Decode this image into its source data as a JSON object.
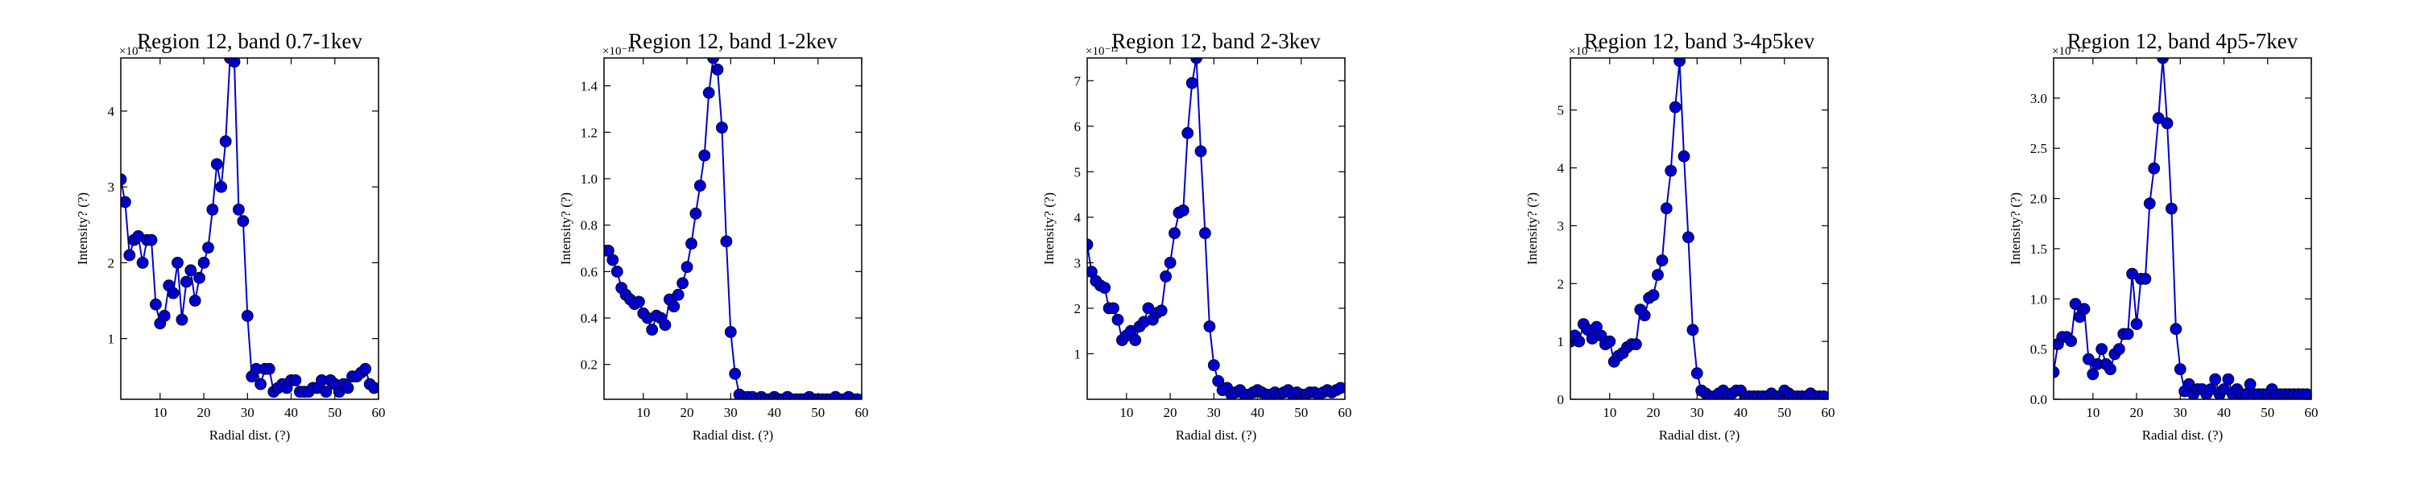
{
  "figure": {
    "background": "#ffffff",
    "line_color": "#0000cc",
    "marker_color": "#0000cc"
  },
  "chart_data": [
    {
      "type": "line",
      "title": "Region 12, band 0.7-1kev",
      "xlabel": "Radial dist. (?)",
      "ylabel": "Intensity? (?)",
      "offset_text": "×10⁻¹²",
      "xlim": [
        1,
        60
      ],
      "ylim": [
        0.2,
        4.7
      ],
      "xticks": [
        10,
        20,
        30,
        40,
        50,
        60
      ],
      "yticks": [
        1,
        2,
        3,
        4
      ],
      "x": [
        1,
        2,
        3,
        4,
        5,
        6,
        7,
        8,
        9,
        10,
        11,
        12,
        13,
        14,
        15,
        16,
        17,
        18,
        19,
        20,
        21,
        22,
        23,
        24,
        25,
        26,
        27,
        28,
        29,
        30,
        31,
        32,
        33,
        34,
        35,
        36,
        37,
        38,
        39,
        40,
        41,
        42,
        43,
        44,
        45,
        46,
        47,
        48,
        49,
        50,
        51,
        52,
        53,
        54,
        55,
        56,
        57,
        58,
        59
      ],
      "y": [
        3.1,
        2.8,
        2.1,
        2.3,
        2.35,
        2.0,
        2.3,
        2.3,
        1.45,
        1.2,
        1.3,
        1.7,
        1.6,
        2.0,
        1.25,
        1.75,
        1.9,
        1.5,
        1.8,
        2.0,
        2.2,
        2.7,
        3.3,
        3.0,
        3.6,
        4.7,
        4.65,
        2.7,
        2.55,
        1.3,
        0.5,
        0.6,
        0.4,
        0.6,
        0.6,
        0.3,
        0.35,
        0.4,
        0.35,
        0.45,
        0.45,
        0.3,
        0.3,
        0.3,
        0.35,
        0.35,
        0.45,
        0.3,
        0.45,
        0.4,
        0.3,
        0.4,
        0.35,
        0.5,
        0.5,
        0.55,
        0.6,
        0.4,
        0.35
      ]
    },
    {
      "type": "line",
      "title": "Region 12, band 1-2kev",
      "xlabel": "Radial dist. (?)",
      "ylabel": "Intensity? (?)",
      "offset_text": "×10⁻¹¹",
      "xlim": [
        1,
        60
      ],
      "ylim": [
        0.05,
        1.52
      ],
      "xticks": [
        10,
        20,
        30,
        40,
        50,
        60
      ],
      "yticks": [
        0.2,
        0.4,
        0.6,
        0.8,
        1.0,
        1.2,
        1.4
      ],
      "x": [
        1,
        2,
        3,
        4,
        5,
        6,
        7,
        8,
        9,
        10,
        11,
        12,
        13,
        14,
        15,
        16,
        17,
        18,
        19,
        20,
        21,
        22,
        23,
        24,
        25,
        26,
        27,
        28,
        29,
        30,
        31,
        32,
        33,
        34,
        35,
        36,
        37,
        38,
        39,
        40,
        41,
        42,
        43,
        44,
        45,
        46,
        47,
        48,
        49,
        50,
        51,
        52,
        53,
        54,
        55,
        56,
        57,
        58,
        59
      ],
      "y": [
        0.69,
        0.69,
        0.65,
        0.6,
        0.53,
        0.5,
        0.48,
        0.46,
        0.47,
        0.42,
        0.4,
        0.35,
        0.41,
        0.4,
        0.37,
        0.48,
        0.45,
        0.5,
        0.55,
        0.62,
        0.72,
        0.85,
        0.97,
        1.1,
        1.37,
        1.52,
        1.47,
        1.22,
        0.73,
        0.34,
        0.16,
        0.07,
        0.06,
        0.06,
        0.06,
        0.05,
        0.06,
        0.05,
        0.05,
        0.06,
        0.05,
        0.05,
        0.06,
        0.05,
        0.05,
        0.05,
        0.05,
        0.06,
        0.05,
        0.05,
        0.05,
        0.05,
        0.05,
        0.06,
        0.05,
        0.05,
        0.06,
        0.05,
        0.05
      ]
    },
    {
      "type": "line",
      "title": "Region 12, band 2-3kev",
      "xlabel": "Radial dist. (?)",
      "ylabel": "Intensity? (?)",
      "offset_text": "×10⁻¹²",
      "xlim": [
        1,
        60
      ],
      "ylim": [
        0,
        7.5
      ],
      "xticks": [
        10,
        20,
        30,
        40,
        50,
        60
      ],
      "yticks": [
        1,
        2,
        3,
        4,
        5,
        6,
        7
      ],
      "x": [
        1,
        2,
        3,
        4,
        5,
        6,
        7,
        8,
        9,
        10,
        11,
        12,
        13,
        14,
        15,
        16,
        17,
        18,
        19,
        20,
        21,
        22,
        23,
        24,
        25,
        26,
        27,
        28,
        29,
        30,
        31,
        32,
        33,
        34,
        35,
        36,
        37,
        38,
        39,
        40,
        41,
        42,
        43,
        44,
        45,
        46,
        47,
        48,
        49,
        50,
        51,
        52,
        53,
        54,
        55,
        56,
        57,
        58,
        59
      ],
      "y": [
        3.4,
        2.8,
        2.6,
        2.5,
        2.45,
        2.0,
        2.0,
        1.75,
        1.3,
        1.4,
        1.5,
        1.3,
        1.6,
        1.7,
        2.0,
        1.75,
        1.9,
        1.95,
        2.7,
        3.0,
        3.65,
        4.1,
        4.15,
        5.85,
        6.95,
        7.5,
        5.45,
        3.65,
        1.6,
        0.75,
        0.4,
        0.2,
        0.25,
        0.1,
        0.15,
        0.2,
        0.1,
        0.1,
        0.15,
        0.2,
        0.15,
        0.1,
        0.1,
        0.15,
        0.1,
        0.15,
        0.2,
        0.1,
        0.15,
        0.1,
        0.1,
        0.15,
        0.15,
        0.1,
        0.15,
        0.2,
        0.15,
        0.2,
        0.25
      ]
    },
    {
      "type": "line",
      "title": "Region 12, band 3-4p5kev",
      "xlabel": "Radial dist. (?)",
      "ylabel": "Intensity? (?)",
      "offset_text": "×10⁻¹²",
      "xlim": [
        1,
        60
      ],
      "ylim": [
        0,
        5.9
      ],
      "xticks": [
        10,
        20,
        30,
        40,
        50,
        60
      ],
      "yticks": [
        0,
        1,
        2,
        3,
        4,
        5
      ],
      "x": [
        1,
        2,
        3,
        4,
        5,
        6,
        7,
        8,
        9,
        10,
        11,
        12,
        13,
        14,
        15,
        16,
        17,
        18,
        19,
        20,
        21,
        22,
        23,
        24,
        25,
        26,
        27,
        28,
        29,
        30,
        31,
        32,
        33,
        34,
        35,
        36,
        37,
        38,
        39,
        40,
        41,
        42,
        43,
        44,
        45,
        46,
        47,
        48,
        49,
        50,
        51,
        52,
        53,
        54,
        55,
        56,
        57,
        58,
        59
      ],
      "y": [
        1.0,
        1.1,
        1.0,
        1.3,
        1.2,
        1.05,
        1.25,
        1.1,
        0.95,
        1.0,
        0.65,
        0.75,
        0.8,
        0.9,
        0.95,
        0.95,
        1.55,
        1.45,
        1.75,
        1.8,
        2.15,
        2.4,
        3.3,
        3.95,
        5.05,
        5.85,
        4.2,
        2.8,
        1.2,
        0.45,
        0.15,
        0.1,
        0.05,
        0.05,
        0.1,
        0.15,
        0.05,
        0.1,
        0.15,
        0.15,
        0.05,
        0.05,
        0.05,
        0.05,
        0.05,
        0.05,
        0.1,
        0.05,
        0.05,
        0.15,
        0.1,
        0.05,
        0.05,
        0.05,
        0.05,
        0.1,
        0.05,
        0.05,
        0.05
      ]
    },
    {
      "type": "line",
      "title": "Region 12, band 4p5-7kev",
      "xlabel": "Radial dist. (?)",
      "ylabel": "Intensity? (?)",
      "offset_text": "×10⁻¹²",
      "xlim": [
        1,
        60
      ],
      "ylim": [
        0,
        3.4
      ],
      "xticks": [
        10,
        20,
        30,
        40,
        50,
        60
      ],
      "yticks": [
        0.0,
        0.5,
        1.0,
        1.5,
        2.0,
        2.5,
        3.0
      ],
      "x": [
        1,
        2,
        3,
        4,
        5,
        6,
        7,
        8,
        9,
        10,
        11,
        12,
        13,
        14,
        15,
        16,
        17,
        18,
        19,
        20,
        21,
        22,
        23,
        24,
        25,
        26,
        27,
        28,
        29,
        30,
        31,
        32,
        33,
        34,
        35,
        36,
        37,
        38,
        39,
        40,
        41,
        42,
        43,
        44,
        45,
        46,
        47,
        48,
        49,
        50,
        51,
        52,
        53,
        54,
        55,
        56,
        57,
        58,
        59
      ],
      "y": [
        0.27,
        0.55,
        0.62,
        0.62,
        0.58,
        0.95,
        0.82,
        0.9,
        0.4,
        0.25,
        0.35,
        0.5,
        0.35,
        0.3,
        0.45,
        0.5,
        0.65,
        0.65,
        1.25,
        0.75,
        1.2,
        1.2,
        1.95,
        2.3,
        2.8,
        3.4,
        2.75,
        1.9,
        0.7,
        0.3,
        0.08,
        0.15,
        0.05,
        0.1,
        0.1,
        0.05,
        0.1,
        0.2,
        0.05,
        0.1,
        0.2,
        0.05,
        0.1,
        0.05,
        0.05,
        0.15,
        0.05,
        0.05,
        0.05,
        0.05,
        0.1,
        0.05,
        0.05,
        0.05,
        0.05,
        0.05,
        0.05,
        0.05,
        0.05
      ]
    }
  ]
}
